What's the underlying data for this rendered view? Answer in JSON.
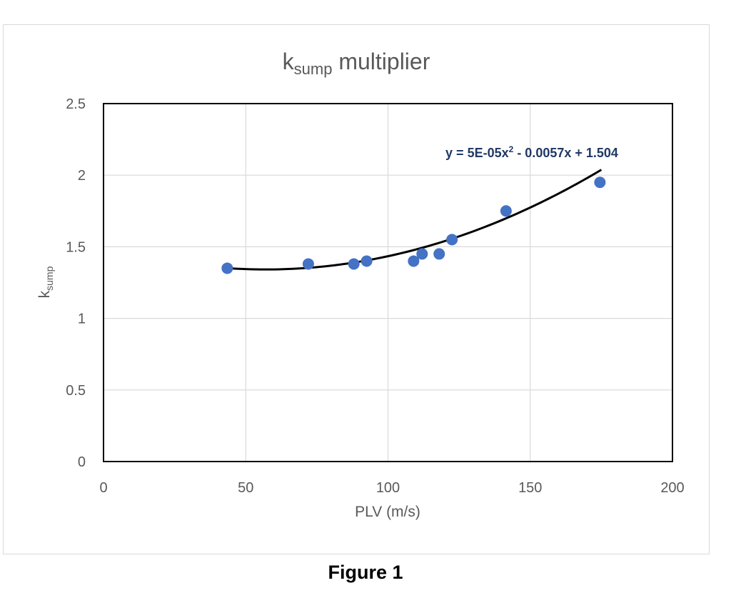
{
  "chart_data": {
    "type": "scatter",
    "title_main": "k",
    "title_sub": "sump",
    "title_rest": " multiplier",
    "xlabel": "PLV (m/s)",
    "ylabel_main": "k",
    "ylabel_sub": "sump",
    "xlim": [
      0,
      200
    ],
    "ylim": [
      0,
      2.5
    ],
    "xticks": [
      0,
      50,
      100,
      150,
      200
    ],
    "yticks": [
      0,
      0.5,
      1,
      1.5,
      2,
      2.5
    ],
    "xtick_labels": [
      "0",
      "50",
      "100",
      "150",
      "200"
    ],
    "ytick_labels": [
      "0",
      "0.5",
      "1",
      "1.5",
      "2",
      "2.5"
    ],
    "grid": true,
    "points": [
      {
        "x": 43.5,
        "y": 1.35
      },
      {
        "x": 72,
        "y": 1.38
      },
      {
        "x": 88,
        "y": 1.38
      },
      {
        "x": 92.5,
        "y": 1.4
      },
      {
        "x": 109,
        "y": 1.4
      },
      {
        "x": 112,
        "y": 1.45
      },
      {
        "x": 118,
        "y": 1.45
      },
      {
        "x": 122.5,
        "y": 1.55
      },
      {
        "x": 141.5,
        "y": 1.75
      },
      {
        "x": 174.5,
        "y": 1.95
      }
    ],
    "trendline": {
      "type": "polynomial",
      "coefficients": [
        5e-05,
        -0.0057,
        1.504
      ],
      "x_range": [
        43.5,
        175
      ],
      "equation_pre": "y = 5E-05x",
      "equation_sup": "2",
      "equation_post": " - 0.0057x + 1.504"
    },
    "colors": {
      "marker": "#4472c4",
      "trendline": "#000000",
      "equation": "#1f3864",
      "grid": "#d9d9d9",
      "axis_text": "#595959",
      "plot_border": "#000000"
    }
  },
  "caption": "Figure 1"
}
